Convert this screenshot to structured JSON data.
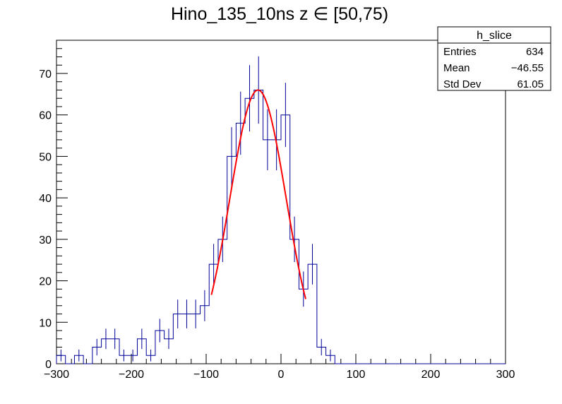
{
  "chart_data": {
    "type": "histogram",
    "title": "Hino_135_10ns z  ∈ [50,75)",
    "xlabel": "",
    "ylabel": "",
    "xlim": [
      -300,
      300
    ],
    "ylim": [
      0,
      78
    ],
    "x_ticks": [
      "−300",
      "−200",
      "−100",
      "0",
      "100",
      "200",
      "300"
    ],
    "y_ticks": [
      "0",
      "10",
      "20",
      "30",
      "40",
      "50",
      "60",
      "70"
    ],
    "bin_width": 12,
    "bins": [
      {
        "x": -294,
        "y": 2
      },
      {
        "x": -282,
        "y": 0
      },
      {
        "x": -270,
        "y": 2
      },
      {
        "x": -258,
        "y": 0
      },
      {
        "x": -246,
        "y": 4
      },
      {
        "x": -234,
        "y": 6
      },
      {
        "x": -222,
        "y": 6
      },
      {
        "x": -210,
        "y": 2
      },
      {
        "x": -198,
        "y": 2
      },
      {
        "x": -186,
        "y": 6
      },
      {
        "x": -174,
        "y": 2
      },
      {
        "x": -162,
        "y": 8
      },
      {
        "x": -150,
        "y": 6
      },
      {
        "x": -138,
        "y": 12
      },
      {
        "x": -126,
        "y": 12
      },
      {
        "x": -114,
        "y": 12
      },
      {
        "x": -102,
        "y": 14
      },
      {
        "x": -90,
        "y": 24
      },
      {
        "x": -78,
        "y": 30
      },
      {
        "x": -66,
        "y": 50
      },
      {
        "x": -54,
        "y": 58
      },
      {
        "x": -42,
        "y": 64
      },
      {
        "x": -30,
        "y": 66
      },
      {
        "x": -18,
        "y": 54
      },
      {
        "x": -6,
        "y": 54
      },
      {
        "x": 6,
        "y": 60
      },
      {
        "x": 18,
        "y": 30
      },
      {
        "x": 30,
        "y": 18
      },
      {
        "x": 42,
        "y": 24
      },
      {
        "x": 54,
        "y": 4
      },
      {
        "x": 66,
        "y": 2
      },
      {
        "x": 78,
        "y": 0
      }
    ],
    "fit": {
      "type": "gaussian",
      "x_range": [
        -93,
        33
      ],
      "constant": 66,
      "mean": -30.7,
      "sigma": 37.5
    },
    "colors": {
      "histogram": "#000099",
      "fit": "#ff0000",
      "axis": "#000000"
    },
    "stats": {
      "name": "h_slice",
      "rows": [
        {
          "label": "Entries",
          "value": "634"
        },
        {
          "label": "Mean",
          "value": "−46.55"
        },
        {
          "label": "Std Dev",
          "value": "61.05"
        }
      ]
    }
  }
}
